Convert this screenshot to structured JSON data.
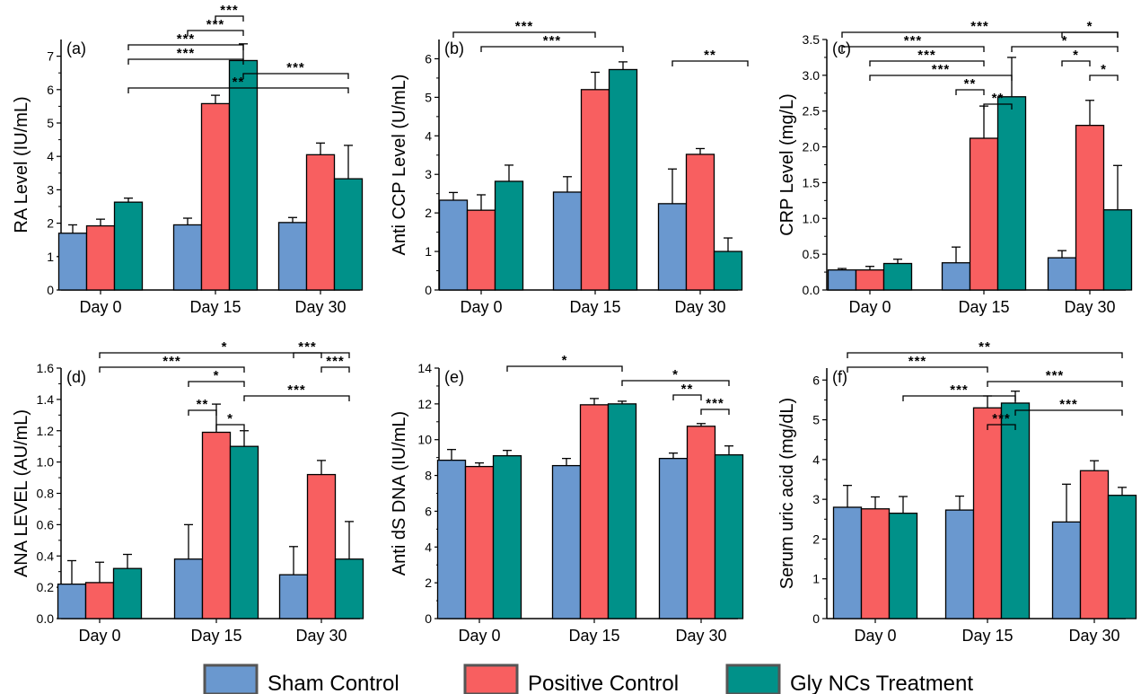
{
  "colors": {
    "Sham Control": "#6a98cf",
    "Positive Control": "#f85f60",
    "Gly NCs Treatment": "#009189"
  },
  "legend": {
    "items": [
      "Sham Control",
      "Positive Control",
      "Gly NCs Treatment"
    ]
  },
  "chart_data": [
    {
      "type": "bar",
      "panel_label": "(a)",
      "categories": [
        "Day 0",
        "Day 15",
        "Day 30"
      ],
      "ylabel": "RA Level (IU/mL)",
      "ylim": [
        0,
        7.5
      ],
      "yticks": [
        0,
        1,
        2,
        3,
        4,
        5,
        6,
        7
      ],
      "grid": false,
      "series": [
        {
          "name": "Sham Control",
          "values": [
            1.7,
            1.95,
            2.02
          ],
          "errors": [
            0.25,
            0.2,
            0.15
          ]
        },
        {
          "name": "Positive Control",
          "values": [
            1.92,
            5.58,
            4.05
          ],
          "errors": [
            0.2,
            0.25,
            0.35
          ]
        },
        {
          "name": "Gly NCs Treatment",
          "values": [
            2.63,
            6.87,
            3.33
          ],
          "errors": [
            0.12,
            0.5,
            1.0
          ]
        }
      ],
      "significance": [
        {
          "from": [
            1,
            1
          ],
          "to": [
            1,
            2
          ],
          "label": "***"
        },
        {
          "from": [
            1,
            0
          ],
          "to": [
            1,
            2
          ],
          "label": "***"
        },
        {
          "from": [
            0,
            2
          ],
          "to": [
            1,
            2
          ],
          "label": "***"
        },
        {
          "from": [
            0,
            2
          ],
          "to": [
            1,
            2
          ],
          "label": "***"
        },
        {
          "from": [
            1,
            2
          ],
          "to": [
            2,
            2
          ],
          "label": "***"
        },
        {
          "from": [
            0,
            2
          ],
          "to": [
            2,
            2
          ],
          "label": "**"
        }
      ]
    },
    {
      "type": "bar",
      "panel_label": "(b)",
      "categories": [
        "Day 0",
        "Day 15",
        "Day 30"
      ],
      "ylabel": "Anti CCP Level (U/mL)",
      "ylim": [
        0,
        6.5
      ],
      "yticks": [
        0,
        1,
        2,
        3,
        4,
        5,
        6
      ],
      "grid": false,
      "series": [
        {
          "name": "Sham Control",
          "values": [
            2.33,
            2.54,
            2.24
          ],
          "errors": [
            0.2,
            0.4,
            0.9
          ]
        },
        {
          "name": "Positive Control",
          "values": [
            2.07,
            5.2,
            3.52
          ],
          "errors": [
            0.4,
            0.45,
            0.15
          ]
        },
        {
          "name": "Gly NCs Treatment",
          "values": [
            2.82,
            5.72,
            1.0
          ],
          "errors": [
            0.42,
            0.2,
            0.35
          ]
        }
      ],
      "significance": [
        {
          "from": [
            0,
            0
          ],
          "to": [
            1,
            1
          ],
          "label": "***"
        },
        {
          "from": [
            0,
            1
          ],
          "to": [
            1,
            2
          ],
          "label": "***"
        },
        {
          "from": [
            2,
            2
          ],
          "to": [
            2,
            2
          ],
          "label": "**"
        }
      ]
    },
    {
      "type": "bar",
      "panel_label": "(c)",
      "categories": [
        "Day 0",
        "Day 15",
        "Day 30"
      ],
      "ylabel": "CRP Level (mg/L)",
      "ylim": [
        0,
        3.5
      ],
      "yticks": [
        0.0,
        0.5,
        1.0,
        1.5,
        2.0,
        2.5,
        3.0,
        3.5
      ],
      "grid": false,
      "series": [
        {
          "name": "Sham Control",
          "values": [
            0.28,
            0.38,
            0.45
          ],
          "errors": [
            0.02,
            0.22,
            0.1
          ]
        },
        {
          "name": "Positive Control",
          "values": [
            0.28,
            2.12,
            2.3
          ],
          "errors": [
            0.05,
            0.45,
            0.35
          ]
        },
        {
          "name": "Gly NCs Treatment",
          "values": [
            0.37,
            2.7,
            1.12
          ],
          "errors": [
            0.06,
            0.55,
            0.62
          ]
        }
      ],
      "significance": [
        {
          "from": [
            0,
            0
          ],
          "to": [
            2,
            2
          ],
          "label": "***"
        },
        {
          "from": [
            0,
            0
          ],
          "to": [
            1,
            1
          ],
          "label": "***"
        },
        {
          "from": [
            0,
            1
          ],
          "to": [
            1,
            1
          ],
          "label": "***"
        },
        {
          "from": [
            0,
            1
          ],
          "to": [
            1,
            2
          ],
          "label": "***"
        },
        {
          "from": [
            1,
            0
          ],
          "to": [
            1,
            1
          ],
          "label": "**"
        },
        {
          "from": [
            1,
            1
          ],
          "to": [
            1,
            2
          ],
          "label": "**"
        },
        {
          "from": [
            2,
            0
          ],
          "to": [
            2,
            2
          ],
          "label": "*"
        },
        {
          "from": [
            1,
            2
          ],
          "to": [
            2,
            2
          ],
          "label": "*"
        },
        {
          "from": [
            2,
            0
          ],
          "to": [
            2,
            1
          ],
          "label": "*"
        },
        {
          "from": [
            2,
            1
          ],
          "to": [
            2,
            2
          ],
          "label": "*"
        }
      ]
    },
    {
      "type": "bar",
      "panel_label": "(d)",
      "categories": [
        "Day 0",
        "Day 15",
        "Day 30"
      ],
      "ylabel": "ANA LEVEL (AU/mL)",
      "ylim": [
        0,
        1.6
      ],
      "yticks": [
        0.0,
        0.2,
        0.4,
        0.6,
        0.8,
        1.0,
        1.2,
        1.4,
        1.6
      ],
      "grid": false,
      "series": [
        {
          "name": "Sham Control",
          "values": [
            0.22,
            0.38,
            0.28
          ],
          "errors": [
            0.15,
            0.22,
            0.18
          ]
        },
        {
          "name": "Positive Control",
          "values": [
            0.23,
            1.19,
            0.92
          ],
          "errors": [
            0.13,
            0.18,
            0.09
          ]
        },
        {
          "name": "Gly NCs Treatment",
          "values": [
            0.32,
            1.1,
            0.38
          ],
          "errors": [
            0.09,
            0.1,
            0.24
          ]
        }
      ],
      "significance": [
        {
          "from": [
            0,
            1
          ],
          "to": [
            2,
            2
          ],
          "label": "*"
        },
        {
          "from": [
            0,
            1
          ],
          "to": [
            1,
            2
          ],
          "label": "***"
        },
        {
          "from": [
            1,
            0
          ],
          "to": [
            1,
            2
          ],
          "label": "*"
        },
        {
          "from": [
            1,
            2
          ],
          "to": [
            2,
            2
          ],
          "label": "***"
        },
        {
          "from": [
            1,
            0
          ],
          "to": [
            1,
            1
          ],
          "label": "**"
        },
        {
          "from": [
            1,
            1
          ],
          "to": [
            1,
            2
          ],
          "label": "*"
        },
        {
          "from": [
            2,
            0
          ],
          "to": [
            2,
            1
          ],
          "label": "***"
        },
        {
          "from": [
            2,
            1
          ],
          "to": [
            2,
            2
          ],
          "label": "***"
        }
      ]
    },
    {
      "type": "bar",
      "panel_label": "(e)",
      "categories": [
        "Day 0",
        "Day 15",
        "Day 30"
      ],
      "ylabel": "Anti dS DNA (IU/mL)",
      "ylim": [
        0,
        14
      ],
      "yticks": [
        0,
        2,
        4,
        6,
        8,
        10,
        12,
        14
      ],
      "grid": false,
      "series": [
        {
          "name": "Sham Control",
          "values": [
            8.85,
            8.55,
            8.95
          ],
          "errors": [
            0.6,
            0.4,
            0.3
          ]
        },
        {
          "name": "Positive Control",
          "values": [
            8.5,
            11.95,
            10.75
          ],
          "errors": [
            0.2,
            0.35,
            0.15
          ]
        },
        {
          "name": "Gly NCs Treatment",
          "values": [
            9.1,
            12.0,
            9.15
          ],
          "errors": [
            0.3,
            0.15,
            0.5
          ]
        }
      ],
      "significance": [
        {
          "from": [
            0,
            2
          ],
          "to": [
            1,
            2
          ],
          "label": "*"
        },
        {
          "from": [
            1,
            2
          ],
          "to": [
            2,
            2
          ],
          "label": "*"
        },
        {
          "from": [
            2,
            0
          ],
          "to": [
            2,
            1
          ],
          "label": "**"
        },
        {
          "from": [
            2,
            1
          ],
          "to": [
            2,
            2
          ],
          "label": "***"
        }
      ]
    },
    {
      "type": "bar",
      "panel_label": "(f)",
      "categories": [
        "Day 0",
        "Day 15",
        "Day 30"
      ],
      "ylabel": "Serum uric acid (mg/dL)",
      "ylim": [
        0,
        6.3
      ],
      "yticks": [
        0,
        1,
        2,
        3,
        4,
        5,
        6
      ],
      "grid": false,
      "series": [
        {
          "name": "Sham Control",
          "values": [
            2.8,
            2.73,
            2.43
          ],
          "errors": [
            0.55,
            0.35,
            0.95
          ]
        },
        {
          "name": "Positive Control",
          "values": [
            2.76,
            5.3,
            3.72
          ],
          "errors": [
            0.3,
            0.3,
            0.25
          ]
        },
        {
          "name": "Gly NCs Treatment",
          "values": [
            2.65,
            5.42,
            3.1
          ],
          "errors": [
            0.42,
            0.3,
            0.2
          ]
        }
      ],
      "significance": [
        {
          "from": [
            0,
            0
          ],
          "to": [
            2,
            2
          ],
          "label": "**"
        },
        {
          "from": [
            0,
            0
          ],
          "to": [
            1,
            1
          ],
          "label": "***"
        },
        {
          "from": [
            1,
            1
          ],
          "to": [
            2,
            2
          ],
          "label": "***"
        },
        {
          "from": [
            0,
            2
          ],
          "to": [
            1,
            2
          ],
          "label": "***"
        },
        {
          "from": [
            1,
            2
          ],
          "to": [
            2,
            2
          ],
          "label": "***"
        },
        {
          "from": [
            1,
            1
          ],
          "to": [
            1,
            2
          ],
          "label": "***"
        }
      ]
    }
  ]
}
